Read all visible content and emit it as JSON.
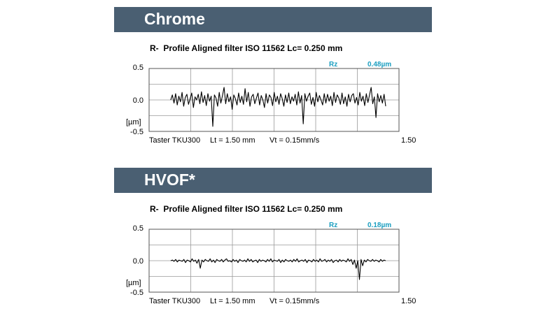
{
  "chart_data": [
    {
      "type": "line",
      "banner": "Chrome",
      "title": "R-  Profile Aligned filter ISO 11562 Lc= 0.250 mm",
      "ylabel": "[µm]",
      "yticks": [
        "0.5",
        "0.0",
        "-0.5"
      ],
      "ylim": [
        -0.5,
        0.5
      ],
      "xlim": [
        0,
        1.5
      ],
      "x_end_label": "1.50",
      "footer": {
        "probe": "Taster TKU300",
        "lt": "Lt = 1.50 mm",
        "vt": "Vt = 0.15mm/s"
      },
      "rz_label": "Rz",
      "rz_value": "0.48µm",
      "series": [
        {
          "x_start": 0.13,
          "x_end": 1.42,
          "values": [
            0.0,
            0.08,
            -0.05,
            0.1,
            -0.08,
            0.06,
            -0.03,
            0.12,
            -0.1,
            0.04,
            0.09,
            -0.07,
            0.02,
            0.11,
            -0.12,
            0.05,
            0.0,
            0.09,
            -0.06,
            0.13,
            -0.04,
            0.07,
            -0.09,
            0.1,
            -0.02,
            0.06,
            -0.42,
            0.08,
            0.03,
            -0.1,
            0.12,
            -0.05,
            0.07,
            0.2,
            -0.06,
            0.1,
            -0.03,
            0.05,
            -0.15,
            0.08,
            0.02,
            -0.08,
            0.11,
            -0.04,
            0.06,
            -0.07,
            0.18,
            -0.03,
            0.12,
            -0.1,
            0.05,
            0.09,
            -0.06,
            0.03,
            0.11,
            -0.08,
            0.07,
            0.0,
            -0.12,
            0.1,
            -0.05,
            0.08,
            0.04,
            -0.09,
            0.12,
            -0.03,
            0.06,
            -0.07,
            0.1,
            0.02,
            -0.1,
            0.08,
            -0.04,
            0.11,
            -0.06,
            0.05,
            -0.02,
            0.09,
            -0.08,
            0.13,
            -0.05,
            0.07,
            -0.38,
            0.1,
            -0.02,
            0.06,
            0.11,
            -0.07,
            0.04,
            -0.1,
            0.12,
            -0.03,
            0.07,
            0.0,
            -0.08,
            0.1,
            -0.05,
            0.09,
            -0.02,
            0.06,
            -0.09,
            0.12,
            -0.04,
            0.08,
            0.03,
            -0.07,
            0.11,
            -0.06,
            0.05,
            -0.1,
            0.09,
            -0.03,
            0.07,
            0.1,
            -0.05,
            0.04,
            -0.08,
            0.12,
            -0.02,
            0.06,
            -0.09,
            0.1,
            -0.04,
            0.08,
            0.2,
            -0.06,
            0.05,
            -0.28,
            0.1,
            -0.03,
            0.07,
            -0.05,
            0.09,
            -0.1
          ]
        }
      ]
    },
    {
      "type": "line",
      "banner": "HVOF*",
      "title": "R-  Profile Aligned filter ISO 11562 Lc= 0.250 mm",
      "ylabel": "[µm]",
      "yticks": [
        "0.5",
        "0.0",
        "-0.5"
      ],
      "ylim": [
        -0.5,
        0.5
      ],
      "xlim": [
        0,
        1.5
      ],
      "x_end_label": "1.50",
      "footer": {
        "probe": "Taster TKU300",
        "lt": "Lt = 1.50 mm",
        "vt": "Vt = 0.15mm/s"
      },
      "rz_label": "Rz",
      "rz_value": "0.18µm",
      "series": [
        {
          "x_start": 0.13,
          "x_end": 1.42,
          "values": [
            0.0,
            0.01,
            -0.01,
            0.02,
            -0.02,
            0.01,
            0.0,
            -0.01,
            0.02,
            -0.03,
            0.01,
            0.0,
            -0.02,
            0.03,
            -0.01,
            0.01,
            -0.04,
            0.02,
            -0.12,
            0.01,
            -0.02,
            0.02,
            0.0,
            -0.01,
            0.03,
            -0.02,
            0.01,
            -0.03,
            0.02,
            0.0,
            -0.01,
            0.02,
            -0.02,
            0.01,
            0.03,
            -0.01,
            0.0,
            -0.02,
            0.02,
            -0.01,
            0.01,
            -0.03,
            0.02,
            0.0,
            -0.01,
            0.01,
            -0.02,
            0.03,
            -0.01,
            0.02,
            -0.02,
            0.0,
            0.01,
            -0.03,
            0.02,
            -0.01,
            0.01,
            0.0,
            -0.02,
            0.02,
            -0.01,
            0.03,
            -0.02,
            0.01,
            0.0,
            -0.01,
            0.02,
            -0.03,
            0.01,
            -0.02,
            0.02,
            0.0,
            -0.01,
            0.01,
            -0.02,
            0.02,
            -0.01,
            0.03,
            -0.02,
            0.0,
            0.01,
            -0.01,
            0.02,
            -0.03,
            0.01,
            0.0,
            -0.02,
            0.02,
            -0.01,
            0.01,
            -0.02,
            0.03,
            -0.01,
            0.0,
            0.02,
            -0.02,
            0.01,
            -0.01,
            0.02,
            -0.03,
            0.0,
            0.01,
            -0.02,
            0.02,
            -0.01,
            0.01,
            0.0,
            -0.02,
            0.03,
            -0.01,
            0.02,
            -0.06,
            0.01,
            -0.12,
            0.0,
            -0.3,
            0.02,
            -0.08,
            0.01,
            -0.02,
            0.02,
            0.0,
            -0.01,
            0.02,
            -0.01,
            0.01,
            0.0,
            -0.02,
            0.02,
            -0.01,
            0.01,
            0.0
          ]
        }
      ]
    }
  ]
}
